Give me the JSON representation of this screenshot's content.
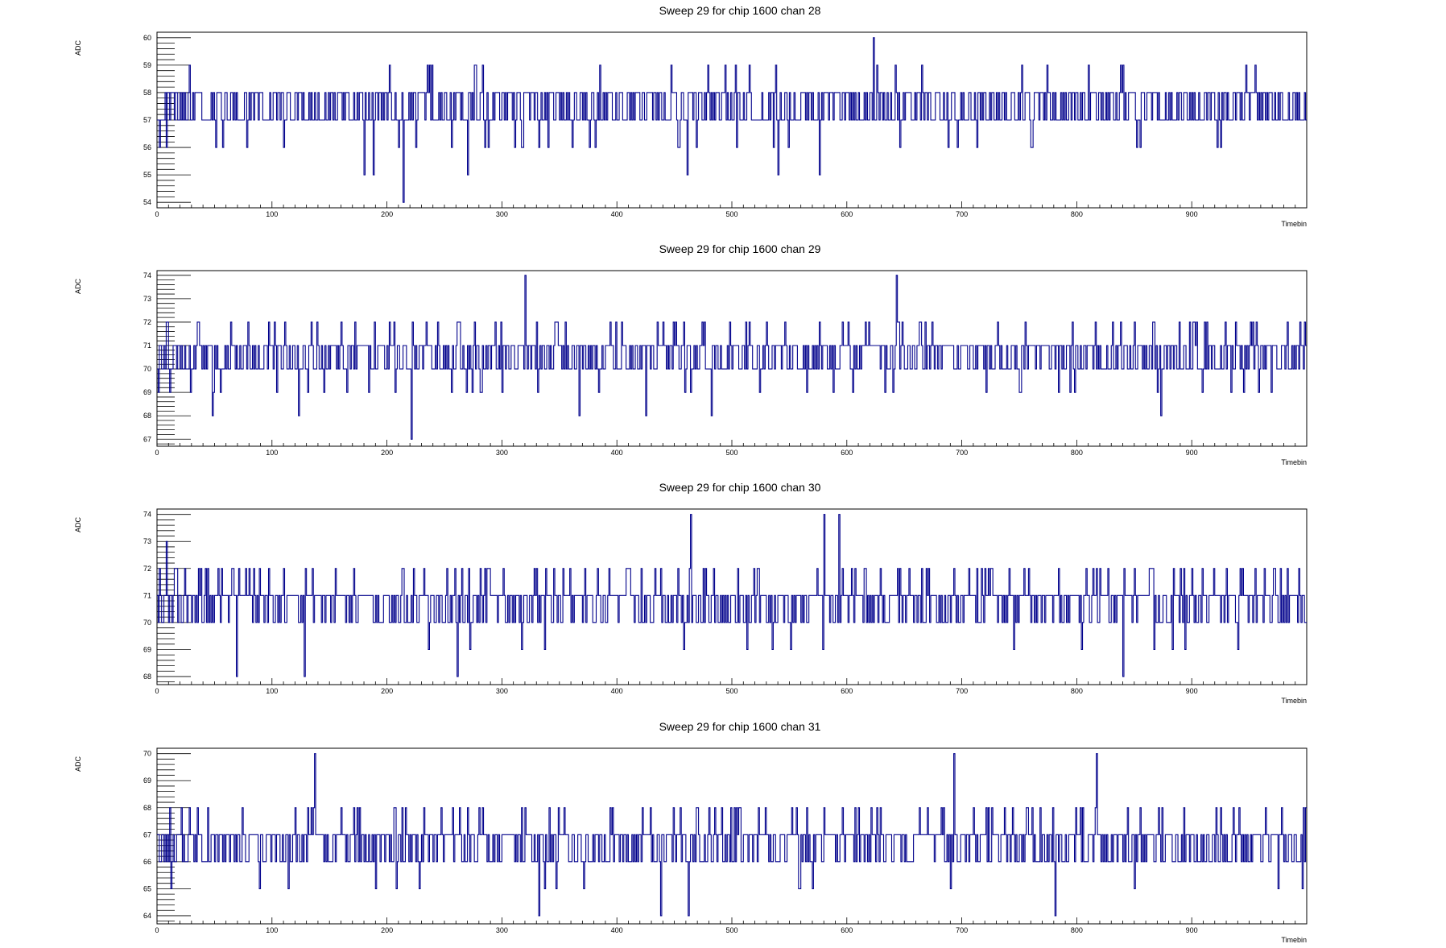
{
  "line_color": "#00008b",
  "chart_data": [
    {
      "type": "line",
      "title": "Sweep 29 for chip 1600 chan 28",
      "xlabel": "Timebin",
      "ylabel": "ADC",
      "xlim": [
        0,
        1000
      ],
      "ylim": [
        53.8,
        60.2
      ],
      "xticks": [
        0,
        100,
        200,
        300,
        400,
        500,
        600,
        700,
        800,
        900
      ],
      "yticks": [
        54,
        55,
        56,
        57,
        58,
        59,
        60
      ],
      "baseline": 57.5,
      "noise": 0.8,
      "min": 54,
      "max": 60,
      "seed": 28,
      "spikes": [
        [
          214,
          54
        ],
        [
          623,
          60
        ],
        [
          180,
          55
        ],
        [
          188,
          55
        ],
        [
          270,
          55
        ],
        [
          540,
          55
        ],
        [
          576,
          55
        ],
        [
          461,
          55
        ]
      ],
      "grid": false,
      "legend": "none"
    },
    {
      "type": "line",
      "title": "Sweep 29 for chip 1600 chan 29",
      "xlabel": "Timebin",
      "ylabel": "ADC",
      "xlim": [
        0,
        1000
      ],
      "ylim": [
        66.7,
        74.2
      ],
      "xticks": [
        0,
        100,
        200,
        300,
        400,
        500,
        600,
        700,
        800,
        900
      ],
      "yticks": [
        67,
        68,
        69,
        70,
        71,
        72,
        73,
        74
      ],
      "baseline": 70.6,
      "noise": 0.9,
      "min": 67,
      "max": 74,
      "seed": 29,
      "spikes": [
        [
          221,
          67
        ],
        [
          320,
          74
        ],
        [
          643,
          74
        ],
        [
          48,
          68
        ],
        [
          123,
          68
        ],
        [
          367,
          68
        ],
        [
          425,
          68
        ],
        [
          482,
          68
        ],
        [
          873,
          68
        ]
      ],
      "grid": false,
      "legend": "none"
    },
    {
      "type": "line",
      "title": "Sweep 29 for chip 1600 chan 30",
      "xlabel": "Timebin",
      "ylabel": "ADC",
      "xlim": [
        0,
        1000
      ],
      "ylim": [
        67.7,
        74.2
      ],
      "xticks": [
        0,
        100,
        200,
        300,
        400,
        500,
        600,
        700,
        800,
        900
      ],
      "yticks": [
        68,
        69,
        70,
        71,
        72,
        73,
        74
      ],
      "baseline": 70.8,
      "noise": 0.85,
      "min": 68,
      "max": 74,
      "seed": 30,
      "spikes": [
        [
          69,
          68
        ],
        [
          128,
          68
        ],
        [
          261,
          68
        ],
        [
          840,
          68
        ],
        [
          464,
          74
        ],
        [
          580,
          74
        ],
        [
          593,
          74
        ],
        [
          8,
          73
        ]
      ],
      "grid": false,
      "legend": "none"
    },
    {
      "type": "line",
      "title": "Sweep 29 for chip 1600 chan 31",
      "xlabel": "Timebin",
      "ylabel": "ADC",
      "xlim": [
        0,
        1000
      ],
      "ylim": [
        63.7,
        70.2
      ],
      "xticks": [
        0,
        100,
        200,
        300,
        400,
        500,
        600,
        700,
        800,
        900
      ],
      "yticks": [
        64,
        65,
        66,
        67,
        68,
        69,
        70
      ],
      "baseline": 66.7,
      "noise": 0.85,
      "min": 64,
      "max": 70,
      "seed": 31,
      "spikes": [
        [
          137,
          70
        ],
        [
          693,
          70
        ],
        [
          817,
          70
        ],
        [
          332,
          64
        ],
        [
          438,
          64
        ],
        [
          462,
          64
        ],
        [
          781,
          64
        ],
        [
          12,
          65
        ]
      ],
      "grid": false,
      "legend": "none"
    }
  ]
}
